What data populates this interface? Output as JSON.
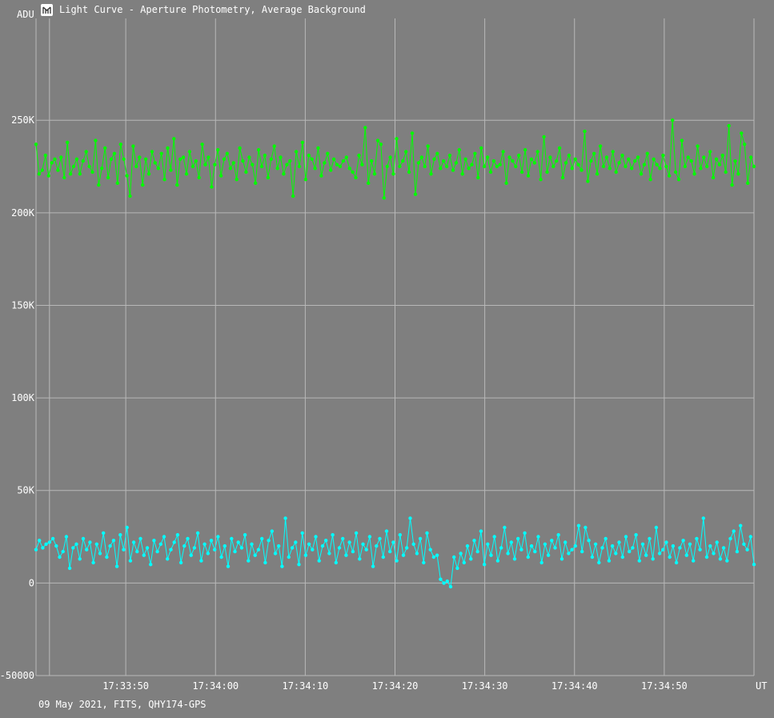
{
  "window": {
    "title": "Light Curve - Aperture Photometry, Average Background",
    "icon": "light-curve-app-icon"
  },
  "footer": {
    "info": "09 May 2021, FITS, QHY174-GPS"
  },
  "colors": {
    "background": "#7f7f7f",
    "grid": "#b8b8b8",
    "series_green": "#00ff00",
    "series_cyan": "#00ffff"
  },
  "chart_data": {
    "type": "line",
    "ylabel": "ADU",
    "xlabel": "UT",
    "ylim": [
      -50000,
      305000
    ],
    "xlim": [
      0,
      80
    ],
    "x_axis_origin": "17:33:40",
    "grid": true,
    "y_ticks": [
      {
        "value": -50000,
        "label": "-50000"
      },
      {
        "value": 0,
        "label": "0"
      },
      {
        "value": 50000,
        "label": "50K"
      },
      {
        "value": 100000,
        "label": "100K"
      },
      {
        "value": 150000,
        "label": "150K"
      },
      {
        "value": 200000,
        "label": "200K"
      },
      {
        "value": 250000,
        "label": "250K"
      }
    ],
    "x_ticks": [
      {
        "value": 10,
        "label": "17:33:50"
      },
      {
        "value": 20,
        "label": "17:34:00"
      },
      {
        "value": 30,
        "label": "17:34:10"
      },
      {
        "value": 40,
        "label": "17:34:20"
      },
      {
        "value": 50,
        "label": "17:34:30"
      },
      {
        "value": 60,
        "label": "17:34:40"
      },
      {
        "value": 70,
        "label": "17:34:50"
      }
    ],
    "series": [
      {
        "color": "#00ff00",
        "values": [
          237000,
          221000,
          223000,
          231000,
          220000,
          227000,
          229000,
          223000,
          230000,
          219000,
          238000,
          221000,
          225000,
          229000,
          221000,
          228000,
          233000,
          225000,
          222000,
          239000,
          215000,
          224000,
          235000,
          219000,
          229000,
          232000,
          216000,
          237000,
          229000,
          220000,
          209000,
          236000,
          225000,
          230000,
          215000,
          229000,
          221000,
          233000,
          227000,
          224000,
          232000,
          218000,
          235000,
          223000,
          240000,
          215000,
          229000,
          230000,
          221000,
          233000,
          225000,
          228000,
          219000,
          237000,
          226000,
          230000,
          214000,
          226000,
          234000,
          220000,
          229000,
          232000,
          224000,
          227000,
          218000,
          235000,
          228000,
          222000,
          230000,
          226000,
          216000,
          234000,
          225000,
          231000,
          219000,
          229000,
          236000,
          224000,
          230000,
          221000,
          226000,
          228000,
          209000,
          233000,
          225000,
          238000,
          218000,
          231000,
          229000,
          224000,
          235000,
          220000,
          227000,
          232000,
          223000,
          229000,
          226000,
          225000,
          228000,
          230000,
          224000,
          222000,
          219000,
          231000,
          226000,
          246000,
          216000,
          228000,
          221000,
          239000,
          237000,
          208000,
          225000,
          230000,
          221000,
          240000,
          225000,
          228000,
          233000,
          222000,
          243000,
          210000,
          227000,
          230000,
          225000,
          236000,
          221000,
          229000,
          232000,
          224000,
          228000,
          225000,
          231000,
          223000,
          227000,
          234000,
          221000,
          229000,
          224000,
          226000,
          232000,
          219000,
          235000,
          225000,
          230000,
          222000,
          228000,
          225000,
          226000,
          233000,
          216000,
          230000,
          228000,
          225000,
          231000,
          222000,
          234000,
          220000,
          229000,
          227000,
          233000,
          218000,
          241000,
          222000,
          230000,
          225000,
          228000,
          235000,
          219000,
          227000,
          231000,
          224000,
          229000,
          226000,
          223000,
          244000,
          217000,
          228000,
          232000,
          221000,
          236000,
          225000,
          230000,
          224000,
          233000,
          222000,
          227000,
          231000,
          225000,
          229000,
          224000,
          228000,
          230000,
          221000,
          226000,
          232000,
          218000,
          229000,
          226000,
          224000,
          231000,
          225000,
          220000,
          250000,
          222000,
          218000,
          239000,
          225000,
          230000,
          228000,
          221000,
          236000,
          224000,
          230000,
          225000,
          233000,
          219000,
          229000,
          226000,
          231000,
          222000,
          247000,
          215000,
          228000,
          221000,
          243000,
          237000,
          216000,
          230000,
          225000
        ]
      },
      {
        "color": "#00ffff",
        "values": [
          18000,
          23000,
          19000,
          21000,
          22000,
          24000,
          20000,
          14000,
          17000,
          25000,
          8000,
          19000,
          21000,
          13000,
          24000,
          18000,
          22000,
          11000,
          21000,
          16000,
          27000,
          14000,
          20000,
          23000,
          9000,
          26000,
          18000,
          30000,
          12000,
          22000,
          17000,
          24000,
          15000,
          19000,
          10000,
          23000,
          17000,
          21000,
          25000,
          13000,
          18000,
          22000,
          26000,
          11000,
          20000,
          24000,
          15000,
          19000,
          27000,
          12000,
          21000,
          16000,
          23000,
          18000,
          25000,
          14000,
          20000,
          9000,
          24000,
          17000,
          22000,
          19000,
          26000,
          12000,
          21000,
          15000,
          18000,
          24000,
          11000,
          23000,
          28000,
          16000,
          20000,
          9000,
          35000,
          14000,
          19000,
          22000,
          10000,
          27000,
          15000,
          21000,
          18000,
          25000,
          12000,
          20000,
          23000,
          16000,
          26000,
          11000,
          19000,
          24000,
          15000,
          22000,
          17000,
          27000,
          13000,
          21000,
          18000,
          25000,
          9000,
          20000,
          24000,
          14000,
          28000,
          17000,
          22000,
          12000,
          26000,
          15000,
          19000,
          35000,
          21000,
          16000,
          24000,
          11000,
          27000,
          18000,
          14000,
          15000,
          2000,
          0,
          1000,
          -2000,
          14000,
          8000,
          16000,
          11000,
          20000,
          13000,
          23000,
          17000,
          28000,
          10000,
          21000,
          15000,
          25000,
          12000,
          19000,
          30000,
          16000,
          22000,
          13000,
          24000,
          18000,
          27000,
          14000,
          20000,
          17000,
          25000,
          11000,
          21000,
          15000,
          23000,
          19000,
          26000,
          13000,
          22000,
          16000,
          18000,
          20000,
          31000,
          17000,
          30000,
          23000,
          14000,
          21000,
          11000,
          19000,
          24000,
          12000,
          20000,
          16000,
          22000,
          14000,
          25000,
          17000,
          19000,
          26000,
          12000,
          21000,
          15000,
          24000,
          13000,
          30000,
          16000,
          18000,
          22000,
          14000,
          20000,
          11000,
          19000,
          23000,
          15000,
          21000,
          12000,
          24000,
          18000,
          35000,
          14000,
          20000,
          16000,
          22000,
          13000,
          19000,
          12000,
          24000,
          28000,
          17000,
          31000,
          21000,
          18000,
          25000,
          10000
        ]
      }
    ]
  }
}
